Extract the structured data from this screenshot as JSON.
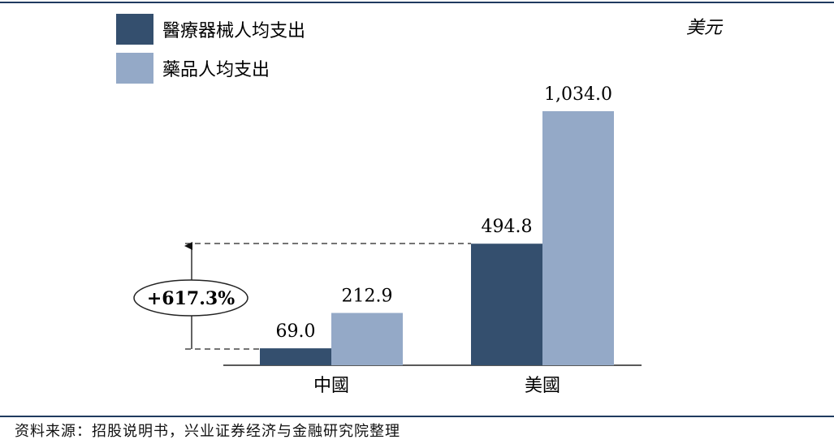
{
  "source_note": "资料来源：招股说明书，兴业证券经济与金融研究院整理",
  "colors": {
    "device": "#344f6e",
    "drug": "#94a9c7",
    "frame": "#1f3a5f"
  },
  "annotation": "+617.3%",
  "chart_data": {
    "type": "bar",
    "unit_label": "美元",
    "categories": [
      "中國",
      "美國"
    ],
    "series": [
      {
        "name": "醫療器械人均支出",
        "values": [
          69.0,
          494.8
        ],
        "labels": [
          "69.0",
          "494.8"
        ]
      },
      {
        "name": "藥品人均支出",
        "values": [
          212.9,
          1034.0
        ],
        "labels": [
          "212.9",
          "1,034.0"
        ]
      }
    ],
    "ylim": [
      0,
      1034.0
    ],
    "grid": false,
    "legend_position": "top-left"
  }
}
